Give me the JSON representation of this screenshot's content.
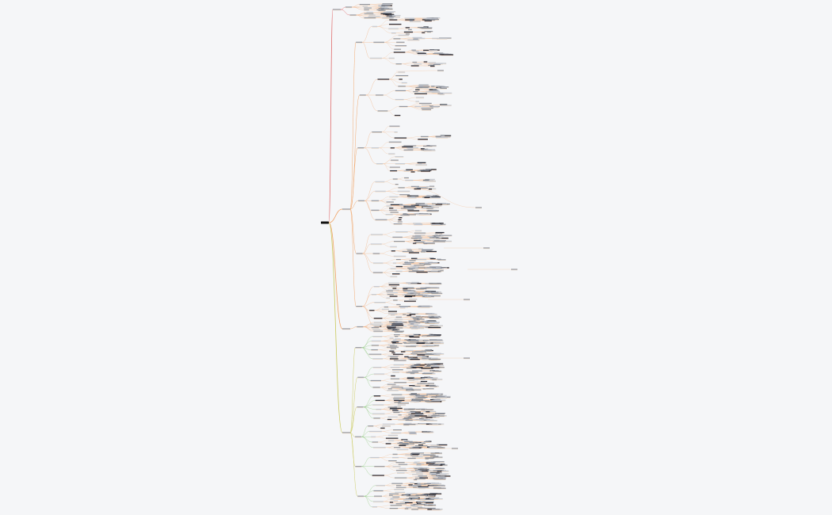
{
  "root": {
    "label": ""
  },
  "colors": {
    "background": "#f5f6f8",
    "branch_red": "#e06c6c",
    "branch_orange": "#f0a060",
    "branch_olive": "#c9c95a",
    "branch_green": "#8cc77a",
    "leaf_box_dark": "#2b2f3a",
    "leaf_box_mid": "#8c9099",
    "leaf_box_light": "#c3c7cf",
    "root_fill": "#111111"
  },
  "note": ""
}
